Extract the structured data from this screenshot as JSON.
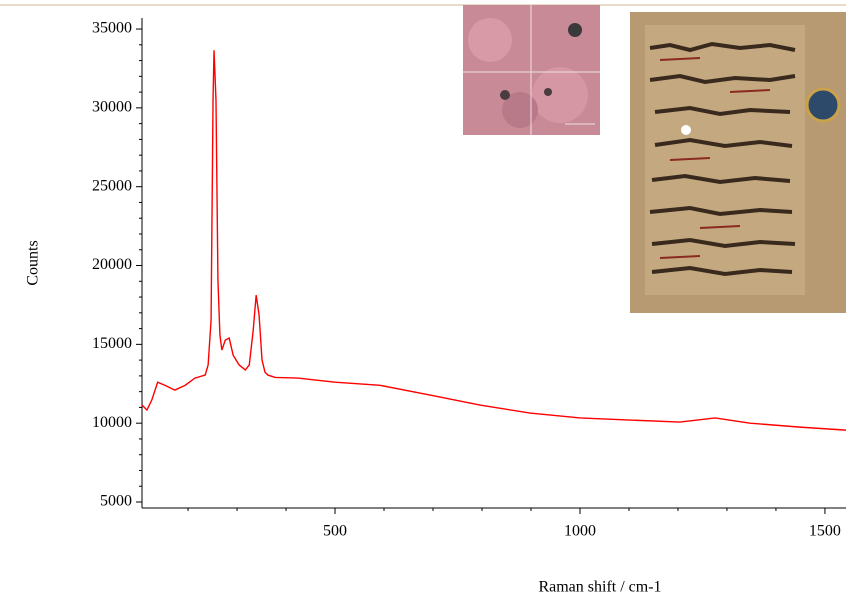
{
  "chart_data": {
    "type": "line",
    "x_label": "Raman shift / cm-1",
    "y_label": "Counts",
    "xlim": [
      106,
      1543
    ],
    "ylim": [
      4620,
      35700
    ],
    "xticks": [
      500,
      1000,
      1500
    ],
    "yticks": [
      5000,
      10000,
      15000,
      20000,
      25000,
      30000,
      35000
    ],
    "xminorticks": [
      200,
      300,
      400,
      600,
      700,
      800,
      900,
      1100,
      1200,
      1300,
      1400
    ],
    "yminorticks": [
      6000,
      7000,
      8000,
      9000,
      11000,
      12000,
      13000,
      14000,
      16000,
      17000,
      18000,
      19000,
      21000,
      22000,
      23000,
      24000,
      26000,
      27000,
      28000,
      29000,
      31000,
      32000,
      33000,
      34000
    ],
    "series": [
      {
        "color": "#ff0000",
        "x": [
          106,
          116,
          126,
          138,
          153,
          173,
          194,
          214,
          235,
          241,
          247,
          251,
          253,
          257,
          261,
          265,
          269,
          276,
          284,
          292,
          304,
          317,
          325,
          333,
          339,
          345,
          351,
          357,
          363,
          378,
          424,
          500,
          592,
          694,
          796,
          898,
          1000,
          1102,
          1204,
          1276,
          1347,
          1449,
          1543
        ],
        "values": [
          11150,
          10830,
          11470,
          12600,
          12400,
          12100,
          12400,
          12860,
          13050,
          13700,
          16540,
          30500,
          33650,
          30500,
          19070,
          15600,
          14640,
          15270,
          15400,
          14320,
          13700,
          13370,
          13700,
          15900,
          18120,
          16860,
          14000,
          13240,
          13050,
          12900,
          12860,
          12600,
          12400,
          11780,
          11150,
          10640,
          10330,
          10200,
          10070,
          10330,
          10000,
          9750,
          9560
        ]
      }
    ]
  }
}
